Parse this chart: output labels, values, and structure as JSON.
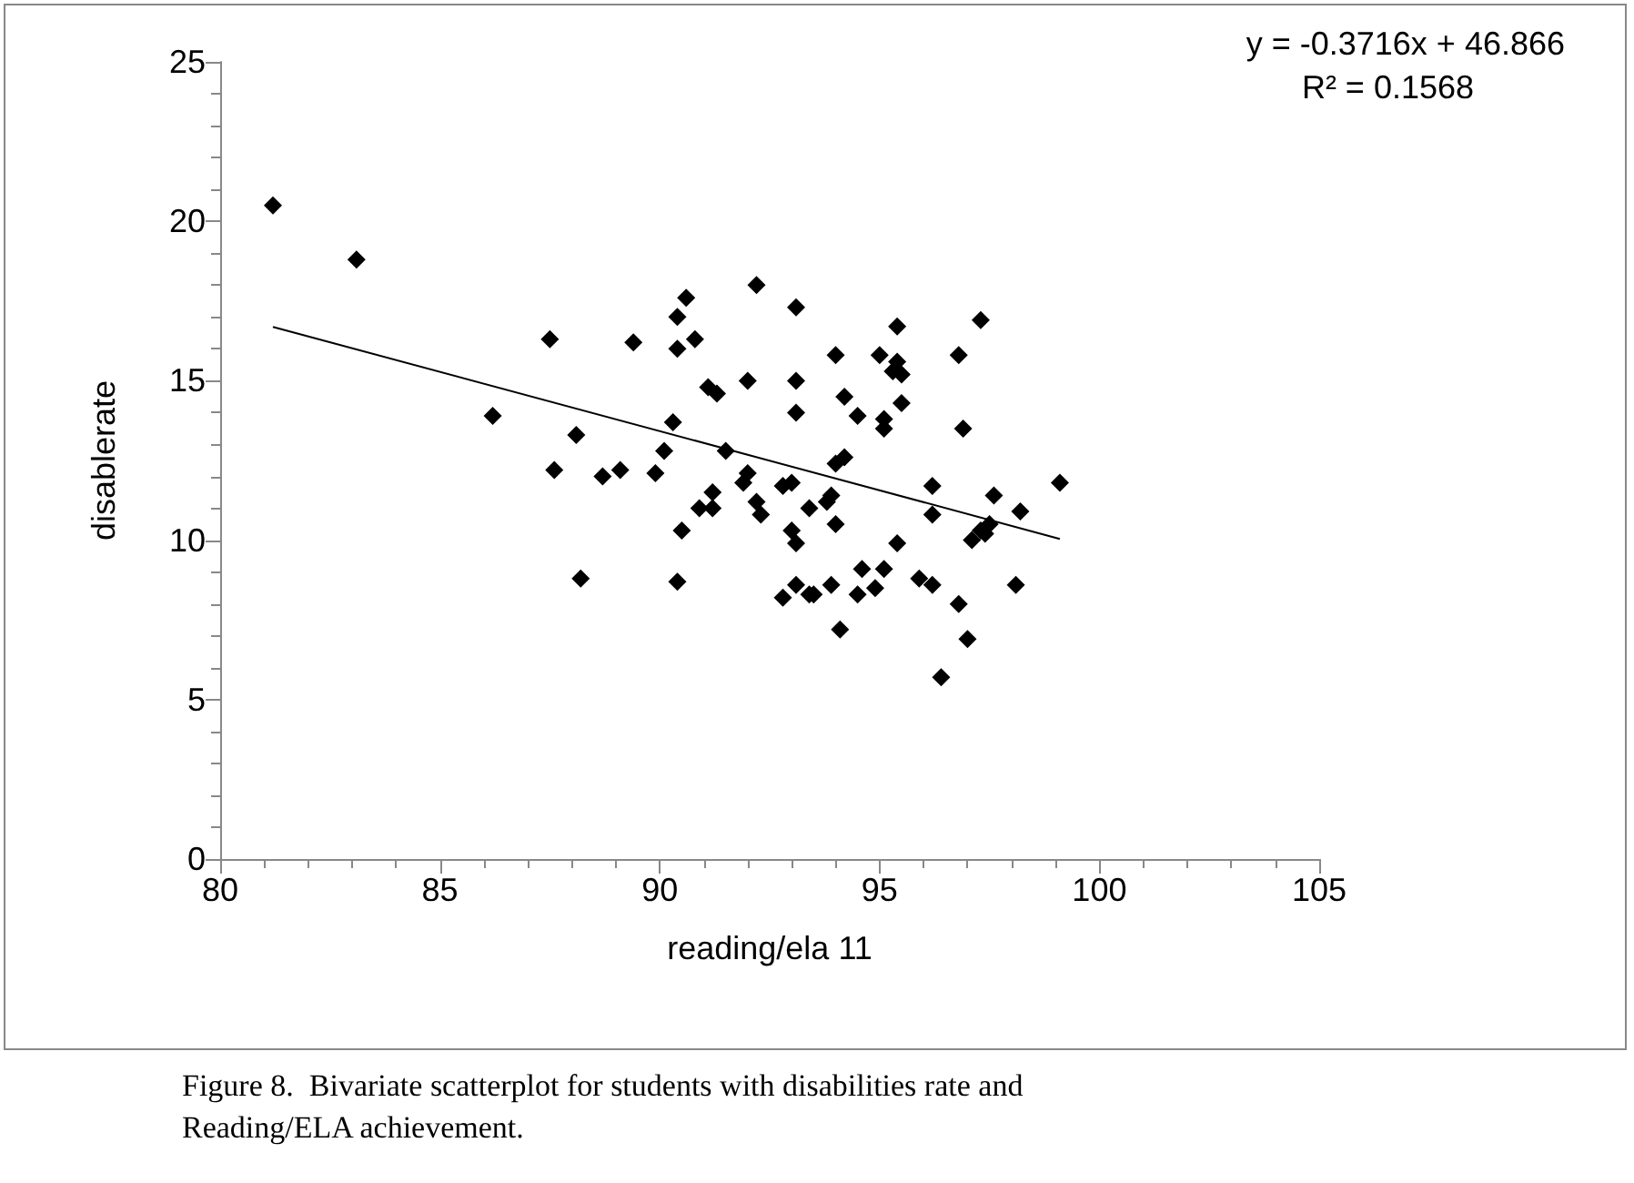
{
  "chart_data": {
    "type": "scatter",
    "xlabel": "reading/ela 11",
    "ylabel": "disablerate",
    "marker": "diamond",
    "xlim": [
      80,
      105
    ],
    "xticks": [
      80,
      85,
      90,
      95,
      100,
      105
    ],
    "ylim": [
      0,
      25
    ],
    "yticks": [
      0,
      5,
      10,
      15,
      20,
      25
    ],
    "annotations": [
      "y = -0.3716x + 46.866",
      "R² = 0.1568",
      "Figure 8.  Bivariate scatterplot for students with disabilities rate and Reading/ELA achievement."
    ],
    "series": [
      {
        "color": "#000000",
        "x": [
          81.2,
          83.1,
          86.2,
          87.5,
          87.6,
          88.1,
          88.2,
          88.7,
          89.1,
          89.4,
          89.9,
          90.1,
          90.3,
          90.4,
          90.4,
          90.4,
          90.5,
          90.6,
          90.8,
          90.9,
          91.1,
          91.2,
          91.3,
          91.2,
          91.5,
          91.9,
          92.0,
          92.0,
          92.2,
          92.2,
          92.3,
          92.8,
          92.8,
          93.0,
          93.0,
          93.1,
          93.1,
          93.1,
          93.1,
          93.1,
          93.4,
          93.4,
          93.5,
          93.8,
          93.9,
          93.9,
          94.0,
          94.0,
          94.0,
          94.1,
          94.2,
          94.2,
          94.5,
          94.5,
          94.6,
          94.9,
          95.0,
          95.1,
          95.1,
          95.1,
          95.3,
          95.4,
          95.4,
          95.5,
          95.4,
          95.5,
          95.9,
          96.2,
          96.2,
          96.2,
          96.4,
          96.8,
          96.9,
          96.8,
          97.0,
          97.1,
          97.3,
          97.3,
          97.4,
          97.5,
          97.6,
          98.1,
          98.2,
          99.1
        ],
        "values": [
          20.5,
          18.8,
          13.9,
          16.3,
          12.2,
          13.3,
          8.8,
          12.0,
          12.2,
          16.2,
          12.1,
          12.8,
          13.7,
          16.0,
          17.0,
          8.7,
          10.3,
          17.6,
          16.3,
          11.0,
          14.8,
          11.5,
          14.6,
          11.0,
          12.8,
          11.8,
          15.0,
          12.1,
          18.0,
          11.2,
          10.8,
          11.7,
          8.2,
          11.8,
          10.3,
          17.3,
          15.0,
          14.0,
          9.9,
          8.6,
          11.0,
          8.3,
          8.3,
          11.2,
          11.4,
          8.6,
          15.8,
          12.4,
          10.5,
          7.2,
          14.5,
          12.6,
          13.9,
          8.3,
          9.1,
          8.5,
          15.8,
          13.8,
          13.5,
          9.1,
          15.3,
          16.7,
          15.6,
          15.2,
          9.9,
          14.3,
          8.8,
          8.6,
          11.7,
          10.8,
          5.7,
          15.8,
          13.5,
          8.0,
          6.9,
          10.0,
          16.9,
          10.3,
          10.2,
          10.5,
          11.4,
          8.6,
          10.9,
          11.8
        ]
      },
      {
        "type": "line",
        "color": "#000000",
        "marker": "none",
        "x": [
          81.2,
          99.1
        ],
        "values": [
          16.69,
          10.04
        ]
      }
    ]
  }
}
